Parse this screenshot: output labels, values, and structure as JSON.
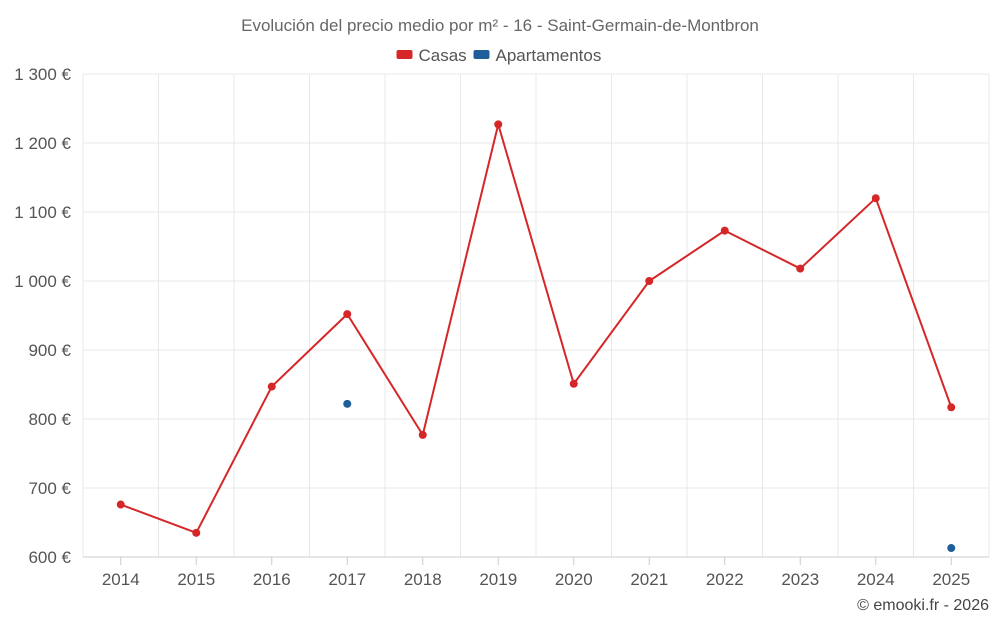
{
  "chart_data": {
    "type": "line",
    "title": "Evolución del precio medio por m² - 16 - Saint-Germain-de-Montbron",
    "categories": [
      "2014",
      "2015",
      "2016",
      "2017",
      "2018",
      "2019",
      "2020",
      "2021",
      "2022",
      "2023",
      "2024",
      "2025"
    ],
    "y_ticks": [
      600,
      700,
      800,
      900,
      1000,
      1100,
      1200,
      1300
    ],
    "y_tick_labels": [
      "600 €",
      "700 €",
      "800 €",
      "900 €",
      "1 000 €",
      "1 100 €",
      "1 200 €",
      "1 300 €"
    ],
    "ylim": [
      600,
      1300
    ],
    "xlabel": "",
    "ylabel": "",
    "grid": true,
    "legend_position": "top-center",
    "series": [
      {
        "name": "Casas",
        "color": "#d62728",
        "values": [
          676,
          635,
          847,
          952,
          777,
          1227,
          851,
          1000,
          1073,
          1018,
          1120,
          817
        ]
      },
      {
        "name": "Apartamentos",
        "color": "#1f5f99",
        "values": [
          null,
          null,
          null,
          822,
          null,
          null,
          null,
          null,
          null,
          null,
          null,
          613
        ]
      }
    ]
  },
  "credit": "© emooki.fr - 2026"
}
